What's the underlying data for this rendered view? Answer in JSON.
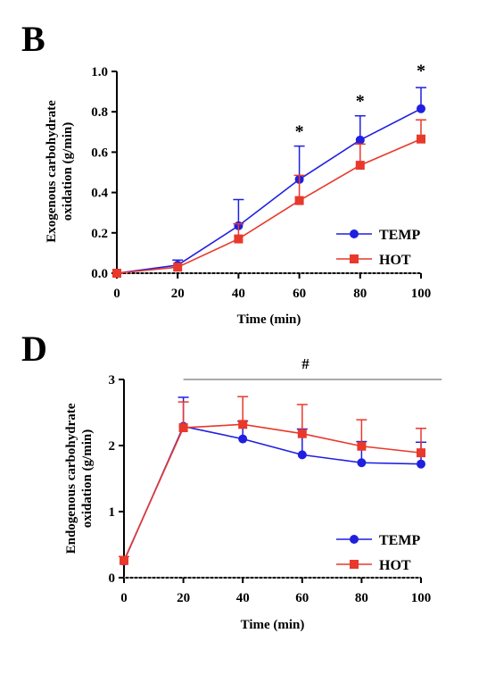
{
  "chart_data": [
    {
      "panel": "B",
      "type": "line",
      "xlabel": "Time (min)",
      "ylabel_lines": [
        "Exogenous carbohydrate",
        "oxidation (g/min)"
      ],
      "x": [
        0,
        20,
        40,
        60,
        80,
        100
      ],
      "xticks": [
        "0",
        "20",
        "40",
        "60",
        "80",
        "100"
      ],
      "yticks": [
        "0.0",
        "0.2",
        "0.4",
        "0.6",
        "0.8",
        "1.0"
      ],
      "ytick_values": [
        0,
        0.2,
        0.4,
        0.6,
        0.8,
        1.0
      ],
      "xlim": [
        0,
        100
      ],
      "ylim": [
        0,
        1.0
      ],
      "series": [
        {
          "name": "TEMP",
          "color": "#1f1fe0",
          "marker": "circle",
          "values": [
            0.0,
            0.04,
            0.235,
            0.465,
            0.66,
            0.815
          ],
          "errors": [
            0.0,
            0.025,
            0.13,
            0.165,
            0.12,
            0.105
          ]
        },
        {
          "name": "HOT",
          "color": "#e8392b",
          "marker": "square",
          "values": [
            0.0,
            0.03,
            0.17,
            0.36,
            0.535,
            0.665
          ],
          "errors": [
            0.0,
            0.0,
            0.075,
            0.125,
            0.105,
            0.095
          ]
        }
      ],
      "annotations": [
        {
          "x": 60,
          "y": 0.72,
          "text": "*"
        },
        {
          "x": 80,
          "y": 0.87,
          "text": "*"
        },
        {
          "x": 100,
          "y": 1.02,
          "text": "*"
        }
      ],
      "legend": "bottom-right",
      "grid": false
    },
    {
      "panel": "D",
      "type": "line",
      "xlabel": "Time (min)",
      "ylabel_lines": [
        "Endogenous carbohydrate",
        "oxidation (g/min)"
      ],
      "x": [
        0,
        20,
        40,
        60,
        80,
        100
      ],
      "xticks": [
        "0",
        "20",
        "40",
        "60",
        "80",
        "100"
      ],
      "yticks": [
        "0",
        "1",
        "2",
        "3"
      ],
      "ytick_values": [
        0,
        1,
        2,
        3
      ],
      "xlim": [
        0,
        100
      ],
      "ylim": [
        0,
        3
      ],
      "series": [
        {
          "name": "TEMP",
          "color": "#1f1fe0",
          "marker": "circle",
          "values": [
            0.25,
            2.29,
            2.1,
            1.86,
            1.74,
            1.72
          ],
          "errors": [
            0.0,
            0.44,
            0.27,
            0.39,
            0.32,
            0.33
          ]
        },
        {
          "name": "HOT",
          "color": "#e8392b",
          "marker": "square",
          "values": [
            0.26,
            2.27,
            2.32,
            2.18,
            1.99,
            1.89
          ],
          "errors": [
            0.06,
            0.39,
            0.42,
            0.44,
            0.4,
            0.37
          ]
        }
      ],
      "significance_bar": {
        "x_start": 20,
        "x_end": 107,
        "y": 3.0,
        "text": "#"
      },
      "legend": "bottom-right",
      "grid": false
    }
  ]
}
